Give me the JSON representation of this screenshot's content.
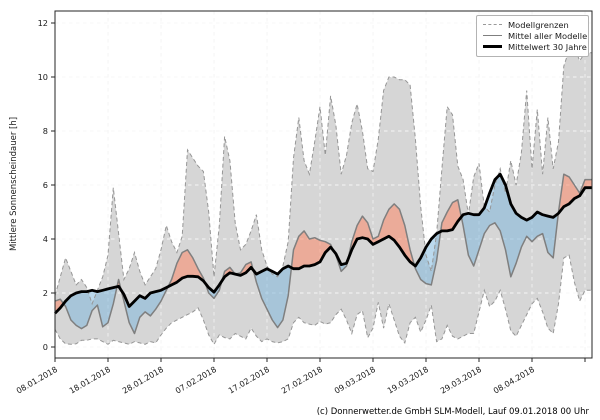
{
  "axes": {
    "ylabel": "Mittlere Sonnenscheindauer [h]",
    "yticks": [
      0,
      2,
      4,
      6,
      8,
      10,
      12
    ],
    "ylim": [
      -0.42,
      12.44
    ],
    "xtick_labels": [
      "08.01.2018",
      "18.01.2018",
      "28.01.2018",
      "07.02.2018",
      "17.02.2018",
      "27.02.2018",
      "09.03.2018",
      "19.03.2018",
      "29.03.2018",
      "08.04.2018"
    ],
    "xtick_days": [
      0,
      10,
      20,
      30,
      40,
      50,
      60,
      70,
      80,
      90
    ],
    "xgrid_days": [
      0,
      10,
      20,
      30,
      40,
      50,
      60,
      70,
      80,
      90,
      100
    ],
    "grid": "on"
  },
  "legend": {
    "position": "upper right",
    "items": [
      {
        "label": "Modellgrenzen",
        "style": "dashed-gray"
      },
      {
        "label": "Mittel aller Modelle",
        "style": "solid-gray"
      },
      {
        "label": "Mittelwert 30 Jahre",
        "style": "thick-black"
      }
    ]
  },
  "caption": "(c) Donnerwetter.de GmbH SLM-Modell, Lauf 09.01.2018 00 Uhr",
  "colors": {
    "band_fill": "rgba(165,165,165,0.45)",
    "band_edge": "#969696",
    "model_mean_line": "#7f7f7f",
    "climate_mean_line": "#000000",
    "above_fill": "rgba(255,128,92,0.5)",
    "below_fill": "rgba(120,180,220,0.5)",
    "grid_line": "#c8c8c8",
    "grid_over_band": "rgba(255,255,255,0.85)",
    "spine": "#262626"
  },
  "chart_data": {
    "type": "line",
    "x_unit": "days since 08.01.2018, daily values (day 0 = 08.01.2018, day 100 = 18.04.2018)",
    "title": "",
    "xlabel": "",
    "ylabel": "Mittlere Sonnenscheindauer [h]",
    "ylim": [
      0,
      12
    ],
    "legend_position": "upper right",
    "series": [
      {
        "name": "Modellgrenzen (oben)",
        "values": [
          1.9,
          2.6,
          3.3,
          2.8,
          2.3,
          2.5,
          2.2,
          1.6,
          2.1,
          2.6,
          3.4,
          5.9,
          4.2,
          2.5,
          2.9,
          3.5,
          2.8,
          2.3,
          2.6,
          2.9,
          3.6,
          4.5,
          3.9,
          3.5,
          4.1,
          7.3,
          7.0,
          6.7,
          6.5,
          5.0,
          2.6,
          4.5,
          7.8,
          6.9,
          4.6,
          3.6,
          3.8,
          4.3,
          4.9,
          3.6,
          3.0,
          2.7,
          2.6,
          3.0,
          3.9,
          7.0,
          8.5,
          6.9,
          6.4,
          7.6,
          8.9,
          7.1,
          9.3,
          8.2,
          6.4,
          7.1,
          8.3,
          9.0,
          8.0,
          6.6,
          6.5,
          7.7,
          9.5,
          10.0,
          10.0,
          9.9,
          9.9,
          9.7,
          7.7,
          5.2,
          3.4,
          2.8,
          4.2,
          6.6,
          8.9,
          8.6,
          6.7,
          6.2,
          4.9,
          6.3,
          6.8,
          5.2,
          5.0,
          6.0,
          6.6,
          5.7,
          6.9,
          6.0,
          7.2,
          9.5,
          6.6,
          8.8,
          6.4,
          8.5,
          6.6,
          7.6,
          10.4,
          11.0,
          11.1,
          10.6,
          10.9
        ]
      },
      {
        "name": "Modellgrenzen (unten)",
        "values": [
          0.65,
          0.3,
          0.12,
          0.1,
          0.12,
          0.25,
          0.25,
          0.3,
          0.3,
          0.2,
          0.1,
          0.25,
          0.2,
          0.15,
          0.1,
          0.2,
          0.15,
          0.1,
          0.2,
          0.15,
          0.45,
          0.7,
          0.9,
          1.0,
          1.1,
          1.2,
          1.3,
          1.45,
          1.0,
          0.45,
          0.1,
          0.45,
          0.35,
          0.3,
          0.5,
          0.4,
          0.3,
          0.7,
          0.4,
          0.2,
          0.3,
          0.2,
          0.15,
          0.2,
          0.3,
          0.9,
          1.1,
          0.9,
          0.85,
          0.8,
          0.95,
          0.85,
          0.9,
          1.2,
          1.4,
          1.0,
          0.5,
          1.2,
          1.35,
          0.35,
          0.7,
          1.65,
          0.7,
          1.6,
          1.0,
          0.4,
          0.15,
          0.9,
          1.1,
          0.55,
          1.0,
          1.55,
          0.2,
          0.3,
          0.8,
          0.4,
          0.3,
          0.4,
          0.5,
          0.5,
          1.3,
          2.1,
          1.5,
          1.7,
          2.1,
          1.4,
          0.6,
          0.4,
          0.8,
          1.2,
          1.6,
          1.8,
          1.3,
          0.7,
          0.5,
          1.6,
          3.3,
          3.4,
          2.4,
          1.7,
          2.1
        ]
      },
      {
        "name": "Mittel aller Modelle",
        "values": [
          1.7,
          1.77,
          1.5,
          1.0,
          0.8,
          0.68,
          0.8,
          1.35,
          1.55,
          0.75,
          0.9,
          1.6,
          2.5,
          1.7,
          0.9,
          0.5,
          1.1,
          1.3,
          1.15,
          1.4,
          1.7,
          2.1,
          2.5,
          3.1,
          3.5,
          3.6,
          3.3,
          2.9,
          2.55,
          2.0,
          1.8,
          2.1,
          2.8,
          2.95,
          2.7,
          2.75,
          3.05,
          3.15,
          2.4,
          1.8,
          1.4,
          1.0,
          0.72,
          1.0,
          1.9,
          3.6,
          4.1,
          4.3,
          4.0,
          4.05,
          3.95,
          3.9,
          3.8,
          3.4,
          2.8,
          3.0,
          3.9,
          4.5,
          4.85,
          4.6,
          4.0,
          4.1,
          4.7,
          5.1,
          5.3,
          5.1,
          4.5,
          3.6,
          2.9,
          2.5,
          2.35,
          2.3,
          3.2,
          4.6,
          5.0,
          5.35,
          5.45,
          4.5,
          3.4,
          3.0,
          3.6,
          4.2,
          4.5,
          4.6,
          4.3,
          3.6,
          2.6,
          3.1,
          3.7,
          4.1,
          3.9,
          4.1,
          4.2,
          3.5,
          3.3,
          5.0,
          6.4,
          6.3,
          6.0,
          5.7,
          6.2
        ]
      },
      {
        "name": "Mittelwert 30 Jahre",
        "values": [
          1.25,
          1.45,
          1.7,
          1.9,
          2.0,
          2.05,
          2.05,
          2.1,
          2.05,
          2.1,
          2.15,
          2.2,
          2.25,
          1.95,
          1.5,
          1.7,
          1.9,
          1.8,
          2.0,
          2.05,
          2.1,
          2.2,
          2.3,
          2.4,
          2.55,
          2.62,
          2.62,
          2.6,
          2.45,
          2.2,
          2.03,
          2.3,
          2.6,
          2.75,
          2.7,
          2.65,
          2.75,
          2.95,
          2.7,
          2.8,
          2.9,
          2.8,
          2.7,
          2.9,
          3.0,
          2.9,
          2.9,
          3.0,
          3.0,
          3.05,
          3.15,
          3.5,
          3.7,
          3.45,
          3.05,
          3.1,
          3.6,
          4.0,
          4.05,
          4.0,
          3.8,
          3.9,
          4.0,
          4.1,
          3.95,
          3.7,
          3.4,
          3.15,
          3.0,
          3.3,
          3.7,
          4.0,
          4.2,
          4.3,
          4.3,
          4.35,
          4.65,
          4.9,
          4.95,
          4.9,
          4.9,
          5.15,
          5.7,
          6.2,
          6.4,
          6.0,
          5.3,
          4.95,
          4.8,
          4.7,
          4.8,
          5.0,
          4.9,
          4.85,
          4.8,
          4.95,
          5.2,
          5.3,
          5.5,
          5.6,
          5.9
        ]
      }
    ],
    "annotations": "Grauband = Spanne aller Modelle; rote Flaechen = Modellmittel ueber dem 30-jaehrigen Mittel; blaue Flaechen = Modellmittel darunter"
  }
}
